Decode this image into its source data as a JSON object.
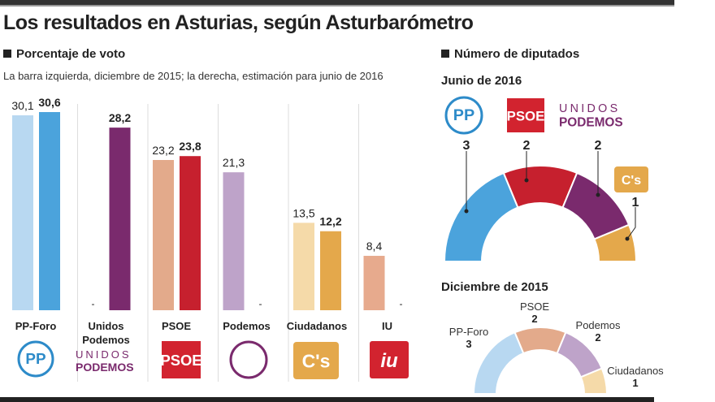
{
  "title": "Los resultados en Asturias, según Asturbarómetro",
  "left": {
    "heading": "Porcentaje de voto",
    "subtitle": "La barra izquierda, diciembre de 2015; la derecha, estimación para junio de 2016"
  },
  "right": {
    "heading": "Número de diputados",
    "junio_title": "Junio de 2016",
    "diciembre_title": "Diciembre de 2015",
    "logos": {
      "pp": "PP",
      "psoe": "PSOE",
      "unidos1": "UNIDOS",
      "unidos2": "PODEMOS",
      "cs": "C's",
      "iu": "iu"
    }
  },
  "chart_data": [
    {
      "type": "bar",
      "title": "Porcentaje de voto",
      "ylim": [
        0,
        32
      ],
      "categories": [
        "PP-Foro",
        "Unidos\nPodemos",
        "PSOE",
        "Podemos",
        "Ciudadanos",
        "IU"
      ],
      "series": [
        {
          "name": "Diciembre 2015",
          "values": [
            30.1,
            null,
            23.2,
            21.3,
            13.5,
            8.4
          ],
          "labels": [
            "30,1",
            "-",
            "23,2",
            "21,3",
            "13,5",
            "8,4"
          ]
        },
        {
          "name": "Junio 2016 (estimación)",
          "values": [
            30.6,
            28.2,
            23.8,
            null,
            12.2,
            null
          ],
          "labels": [
            "30,6",
            "28,2",
            "23,8",
            "-",
            "12,2",
            "-"
          ]
        }
      ],
      "colors": {
        "dec": [
          "#b8d8f1",
          "",
          "#e3aa8b",
          "#bea3c9",
          "#f5daa9",
          "#e7aa8d"
        ],
        "jun": [
          "#4ba3dc",
          "#7a2a6d",
          "#c6202e",
          "",
          "#e4a84b",
          ""
        ]
      }
    },
    {
      "type": "pie",
      "title": "Junio de 2016",
      "labels": [
        "PP",
        "PSOE",
        "Unidos Podemos",
        "C's"
      ],
      "values": [
        3,
        2,
        2,
        1
      ],
      "colors": [
        "#4ba3dc",
        "#c6202e",
        "#7a2a6d",
        "#e4a84b"
      ]
    },
    {
      "type": "pie",
      "title": "Diciembre de 2015",
      "labels": [
        "PP-Foro",
        "PSOE",
        "Podemos",
        "Ciudadanos"
      ],
      "values": [
        3,
        2,
        2,
        1
      ],
      "colors": [
        "#b8d8f1",
        "#e3aa8b",
        "#bea3c9",
        "#f5daa9"
      ]
    }
  ]
}
